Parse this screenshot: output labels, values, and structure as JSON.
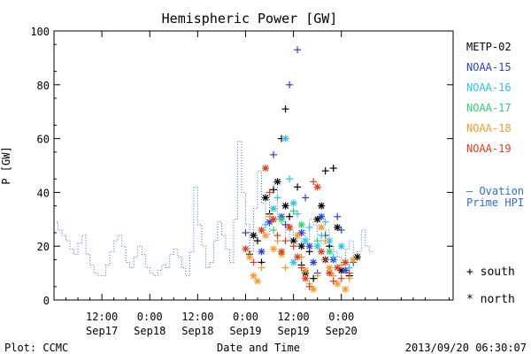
{
  "chart_data": {
    "type": "scatter",
    "title": "Hemispheric Power [GW]",
    "ylabel": "P [GW]",
    "xlabel": "Date and Time",
    "ylim": [
      0,
      100
    ],
    "y_ticks": [
      0,
      20,
      40,
      60,
      80,
      100
    ],
    "xlim_hours": [
      0,
      100
    ],
    "x_ticks": [
      {
        "h": 12,
        "l1": "12:00",
        "l2": "Sep17"
      },
      {
        "h": 24,
        "l1": "0:00",
        "l2": "Sep18"
      },
      {
        "h": 36,
        "l1": "12:00",
        "l2": "Sep18"
      },
      {
        "h": 48,
        "l1": "0:00",
        "l2": "Sep19"
      },
      {
        "h": 60,
        "l1": "12:00",
        "l2": "Sep19"
      },
      {
        "h": 72,
        "l1": "0:00",
        "l2": "Sep20"
      }
    ],
    "footer_left": "Plot: CCMC",
    "footer_right": "2013/09/20 06:30:07",
    "ovation": {
      "label_dash": "— Ovation",
      "label_line2": "Prime HPI",
      "color": "#2e6fcf",
      "points": [
        [
          0,
          29
        ],
        [
          1,
          26
        ],
        [
          2,
          24
        ],
        [
          3,
          22
        ],
        [
          4,
          19
        ],
        [
          5,
          17
        ],
        [
          6,
          21
        ],
        [
          7,
          24
        ],
        [
          8,
          17
        ],
        [
          9,
          13
        ],
        [
          10,
          10
        ],
        [
          11,
          9
        ],
        [
          12,
          9
        ],
        [
          13,
          13
        ],
        [
          14,
          18
        ],
        [
          15,
          22
        ],
        [
          16,
          24
        ],
        [
          17,
          20
        ],
        [
          18,
          14
        ],
        [
          19,
          12
        ],
        [
          20,
          16
        ],
        [
          21,
          20
        ],
        [
          22,
          17
        ],
        [
          23,
          12
        ],
        [
          24,
          10
        ],
        [
          25,
          9
        ],
        [
          26,
          11
        ],
        [
          27,
          13
        ],
        [
          28,
          12
        ],
        [
          29,
          17
        ],
        [
          30,
          19
        ],
        [
          31,
          16
        ],
        [
          32,
          12
        ],
        [
          33,
          9
        ],
        [
          34,
          18
        ],
        [
          35,
          42
        ],
        [
          36,
          28
        ],
        [
          37,
          20
        ],
        [
          38,
          12
        ],
        [
          39,
          14
        ],
        [
          40,
          22
        ],
        [
          41,
          29
        ],
        [
          42,
          24
        ],
        [
          43,
          19
        ],
        [
          44,
          14
        ],
        [
          45,
          30
        ],
        [
          46,
          59
        ],
        [
          47,
          40
        ],
        [
          48,
          28
        ],
        [
          49,
          18
        ],
        [
          50,
          34
        ],
        [
          51,
          48
        ],
        [
          52,
          36
        ],
        [
          53,
          24
        ],
        [
          54,
          40
        ],
        [
          55,
          44
        ],
        [
          56,
          30
        ],
        [
          57,
          28
        ],
        [
          58,
          22
        ],
        [
          59,
          26
        ],
        [
          60,
          24
        ],
        [
          61,
          20
        ],
        [
          62,
          26
        ],
        [
          63,
          22
        ],
        [
          64,
          30
        ],
        [
          65,
          28
        ],
        [
          66,
          24
        ],
        [
          67,
          21
        ],
        [
          68,
          26
        ],
        [
          69,
          20
        ],
        [
          70,
          18
        ],
        [
          71,
          16
        ],
        [
          72,
          14
        ],
        [
          73,
          19
        ],
        [
          74,
          22
        ],
        [
          75,
          16
        ],
        [
          76,
          18
        ],
        [
          77,
          26
        ],
        [
          78,
          20
        ],
        [
          79,
          18
        ]
      ]
    },
    "series": [
      {
        "name": "METP-02",
        "color": "#000000",
        "points": [
          {
            "h": 49,
            "v": 17,
            "m": "+"
          },
          {
            "h": 51,
            "v": 22,
            "m": "+"
          },
          {
            "h": 52,
            "v": 14,
            "m": "+"
          },
          {
            "h": 53,
            "v": 38,
            "m": "*"
          },
          {
            "h": 55,
            "v": 41,
            "m": "+"
          },
          {
            "h": 56,
            "v": 44,
            "m": "*"
          },
          {
            "h": 57,
            "v": 60,
            "m": "+"
          },
          {
            "h": 58,
            "v": 71,
            "m": "+"
          },
          {
            "h": 58,
            "v": 35,
            "m": "*"
          },
          {
            "h": 59,
            "v": 31,
            "m": "+"
          },
          {
            "h": 61,
            "v": 42,
            "m": "+"
          },
          {
            "h": 62,
            "v": 20,
            "m": "*"
          },
          {
            "h": 62,
            "v": 13,
            "m": "+"
          },
          {
            "h": 63,
            "v": 10,
            "m": "*"
          },
          {
            "h": 65,
            "v": 8,
            "m": "+"
          },
          {
            "h": 66,
            "v": 30,
            "m": "*"
          },
          {
            "h": 67,
            "v": 35,
            "m": "*"
          },
          {
            "h": 68,
            "v": 15,
            "m": "*"
          },
          {
            "h": 68,
            "v": 48,
            "m": "+"
          },
          {
            "h": 70,
            "v": 49,
            "m": "+"
          },
          {
            "h": 71,
            "v": 27,
            "m": "*"
          },
          {
            "h": 72,
            "v": 11,
            "m": "*"
          },
          {
            "h": 74,
            "v": 9,
            "m": "+"
          },
          {
            "h": 76,
            "v": 16,
            "m": "*"
          },
          {
            "h": 50,
            "v": 24,
            "m": "*"
          },
          {
            "h": 54,
            "v": 32,
            "m": "+"
          },
          {
            "h": 60,
            "v": 22,
            "m": "*"
          },
          {
            "h": 64,
            "v": 18,
            "m": "+"
          },
          {
            "h": 69,
            "v": 20,
            "m": "+"
          }
        ]
      },
      {
        "name": "NOAA-15",
        "color": "#2a3fd6",
        "points": [
          {
            "h": 48,
            "v": 25,
            "m": "+"
          },
          {
            "h": 52,
            "v": 18,
            "m": "*"
          },
          {
            "h": 54,
            "v": 29,
            "m": "*"
          },
          {
            "h": 55,
            "v": 54,
            "m": "+"
          },
          {
            "h": 57,
            "v": 31,
            "m": "*"
          },
          {
            "h": 58,
            "v": 28,
            "m": "+"
          },
          {
            "h": 59,
            "v": 80,
            "m": "+"
          },
          {
            "h": 61,
            "v": 93,
            "m": "+"
          },
          {
            "h": 62,
            "v": 25,
            "m": "*"
          },
          {
            "h": 63,
            "v": 38,
            "m": "+"
          },
          {
            "h": 65,
            "v": 14,
            "m": "*"
          },
          {
            "h": 66,
            "v": 10,
            "m": "+"
          },
          {
            "h": 67,
            "v": 31,
            "m": "*"
          },
          {
            "h": 68,
            "v": 24,
            "m": "+"
          },
          {
            "h": 70,
            "v": 15,
            "m": "*"
          },
          {
            "h": 71,
            "v": 31,
            "m": "+"
          },
          {
            "h": 72,
            "v": 26,
            "m": "+"
          },
          {
            "h": 73,
            "v": 11,
            "m": "*"
          },
          {
            "h": 75,
            "v": 14,
            "m": "+"
          },
          {
            "h": 64,
            "v": 20,
            "m": "*"
          }
        ]
      },
      {
        "name": "NOAA-16",
        "color": "#29c4ee",
        "points": [
          {
            "h": 53,
            "v": 28,
            "m": "+"
          },
          {
            "h": 55,
            "v": 34,
            "m": "*"
          },
          {
            "h": 56,
            "v": 38,
            "m": "+"
          },
          {
            "h": 58,
            "v": 60,
            "m": "*"
          },
          {
            "h": 59,
            "v": 45,
            "m": "+"
          },
          {
            "h": 60,
            "v": 36,
            "m": "*"
          },
          {
            "h": 61,
            "v": 32,
            "m": "+"
          },
          {
            "h": 63,
            "v": 22,
            "m": "*"
          },
          {
            "h": 64,
            "v": 27,
            "m": "+"
          },
          {
            "h": 66,
            "v": 20,
            "m": "*"
          },
          {
            "h": 67,
            "v": 24,
            "m": "+"
          },
          {
            "h": 69,
            "v": 22,
            "m": "*"
          },
          {
            "h": 70,
            "v": 16,
            "m": "+"
          },
          {
            "h": 72,
            "v": 20,
            "m": "*"
          },
          {
            "h": 74,
            "v": 12,
            "m": "+"
          },
          {
            "h": 60,
            "v": 14,
            "m": "*"
          },
          {
            "h": 68,
            "v": 29,
            "m": "+"
          }
        ]
      },
      {
        "name": "NOAA-17",
        "color": "#2fcf7a",
        "points": [
          {
            "h": 55,
            "v": 26,
            "m": "+"
          },
          {
            "h": 57,
            "v": 30,
            "m": "*"
          },
          {
            "h": 60,
            "v": 33,
            "m": "+"
          },
          {
            "h": 62,
            "v": 28,
            "m": "*"
          },
          {
            "h": 66,
            "v": 22,
            "m": "+"
          },
          {
            "h": 69,
            "v": 18,
            "m": "*"
          }
        ]
      },
      {
        "name": "NOAA-18",
        "color": "#f39a28",
        "points": [
          {
            "h": 49,
            "v": 16,
            "m": "*"
          },
          {
            "h": 50,
            "v": 9,
            "m": "*"
          },
          {
            "h": 51,
            "v": 7,
            "m": "*"
          },
          {
            "h": 52,
            "v": 12,
            "m": "+"
          },
          {
            "h": 53,
            "v": 24,
            "m": "*"
          },
          {
            "h": 54,
            "v": 31,
            "m": "+"
          },
          {
            "h": 55,
            "v": 19,
            "m": "*"
          },
          {
            "h": 56,
            "v": 22,
            "m": "+"
          },
          {
            "h": 57,
            "v": 17,
            "m": "*"
          },
          {
            "h": 58,
            "v": 12,
            "m": "+"
          },
          {
            "h": 59,
            "v": 27,
            "m": "*"
          },
          {
            "h": 60,
            "v": 20,
            "m": "+"
          },
          {
            "h": 61,
            "v": 24,
            "m": "*"
          },
          {
            "h": 62,
            "v": 16,
            "m": "+"
          },
          {
            "h": 63,
            "v": 11,
            "m": "*"
          },
          {
            "h": 64,
            "v": 6,
            "m": "+"
          },
          {
            "h": 65,
            "v": 4,
            "m": "*"
          },
          {
            "h": 66,
            "v": 9,
            "m": "+"
          },
          {
            "h": 67,
            "v": 27,
            "m": "*"
          },
          {
            "h": 68,
            "v": 22,
            "m": "+"
          },
          {
            "h": 69,
            "v": 12,
            "m": "*"
          },
          {
            "h": 70,
            "v": 9,
            "m": "+"
          },
          {
            "h": 71,
            "v": 6,
            "m": "*"
          },
          {
            "h": 72,
            "v": 13,
            "m": "+"
          },
          {
            "h": 73,
            "v": 4,
            "m": "*"
          },
          {
            "h": 74,
            "v": 8,
            "m": "+"
          },
          {
            "h": 75,
            "v": 15,
            "m": "*"
          }
        ]
      },
      {
        "name": "NOAA-19",
        "color": "#e03c1c",
        "points": [
          {
            "h": 48,
            "v": 19,
            "m": "*"
          },
          {
            "h": 50,
            "v": 14,
            "m": "+"
          },
          {
            "h": 52,
            "v": 26,
            "m": "*"
          },
          {
            "h": 53,
            "v": 49,
            "m": "*"
          },
          {
            "h": 54,
            "v": 40,
            "m": "+"
          },
          {
            "h": 55,
            "v": 30,
            "m": "*"
          },
          {
            "h": 56,
            "v": 24,
            "m": "+"
          },
          {
            "h": 57,
            "v": 18,
            "m": "*"
          },
          {
            "h": 58,
            "v": 22,
            "m": "+"
          },
          {
            "h": 59,
            "v": 27,
            "m": "*"
          },
          {
            "h": 60,
            "v": 20,
            "m": "+"
          },
          {
            "h": 61,
            "v": 16,
            "m": "*"
          },
          {
            "h": 62,
            "v": 12,
            "m": "+"
          },
          {
            "h": 63,
            "v": 8,
            "m": "*"
          },
          {
            "h": 64,
            "v": 5,
            "m": "+"
          },
          {
            "h": 65,
            "v": 44,
            "m": "+"
          },
          {
            "h": 66,
            "v": 42,
            "m": "*"
          },
          {
            "h": 67,
            "v": 18,
            "m": "*"
          },
          {
            "h": 68,
            "v": 15,
            "m": "+"
          },
          {
            "h": 69,
            "v": 10,
            "m": "*"
          },
          {
            "h": 70,
            "v": 7,
            "m": "+"
          },
          {
            "h": 71,
            "v": 12,
            "m": "*"
          },
          {
            "h": 72,
            "v": 8,
            "m": "+"
          },
          {
            "h": 73,
            "v": 14,
            "m": "*"
          },
          {
            "h": 74,
            "v": 10,
            "m": "+"
          }
        ]
      }
    ],
    "marker_key": [
      {
        "symbol": "+",
        "label": "south"
      },
      {
        "symbol": "*",
        "label": "north"
      }
    ]
  }
}
